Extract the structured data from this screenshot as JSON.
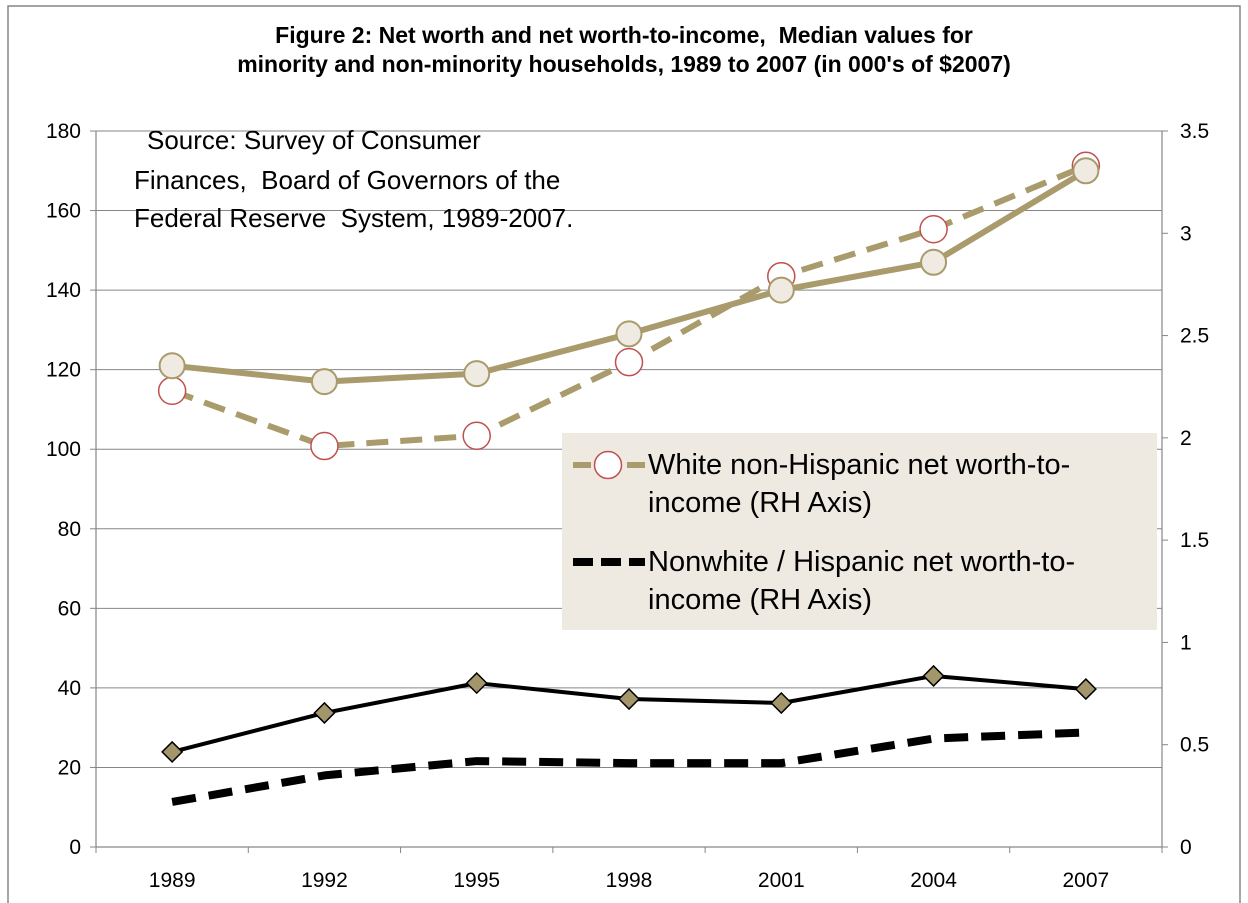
{
  "chart_data": {
    "type": "line",
    "title": [
      "Figure 2: Net worth and net worth-to-income,  Median values for",
      "minority and non-minority households, 1989 to 2007 (in 000's of $2007)"
    ],
    "annotation": [
      "Source: Survey of Consumer",
      "Finances,  Board of Governors of the",
      "Federal Reserve  System, 1989-2007."
    ],
    "categories": [
      "1989",
      "1992",
      "1995",
      "1998",
      "2001",
      "2004",
      "2007"
    ],
    "ylim": [
      0,
      180
    ],
    "y2lim": [
      0,
      3.5
    ],
    "yticks": [
      "0",
      "20",
      "40",
      "60",
      "80",
      "100",
      "120",
      "140",
      "160",
      "180"
    ],
    "y2ticks": [
      "0",
      "0.5",
      "1",
      "1.5",
      "2",
      "2.5",
      "3",
      "3.5"
    ],
    "grid": true,
    "legend_position": "center-right",
    "legend_background": "#EEEAE2",
    "series": [
      {
        "values": [
          121,
          117,
          119,
          129,
          140,
          147,
          170
        ],
        "secondary_axis": false,
        "color": "#A99B6C",
        "marker_fill": "#EFEBE2",
        "marker_stroke": "#A99B6C"
      },
      {
        "name": "White non-Hispanic net worth-to-income (RH Axis)",
        "values": [
          2.23,
          1.96,
          2.01,
          2.37,
          2.79,
          3.02,
          3.33
        ],
        "secondary_axis": true,
        "color": "#A99B6C",
        "marker_fill": "#FFFFFF",
        "marker_stroke": "#C0504D"
      },
      {
        "values": [
          23.9,
          33.7,
          41.2,
          37.2,
          36.2,
          43.0,
          39.7
        ],
        "secondary_axis": false,
        "color": "#000000",
        "marker_fill": "#A3966A",
        "marker_stroke": "#000000"
      },
      {
        "name": "Nonwhite / Hispanic net worth-to-income (RH Axis)",
        "values": [
          0.22,
          0.35,
          0.42,
          0.41,
          0.41,
          0.53,
          0.56
        ],
        "secondary_axis": true,
        "color": "#000000"
      }
    ]
  }
}
